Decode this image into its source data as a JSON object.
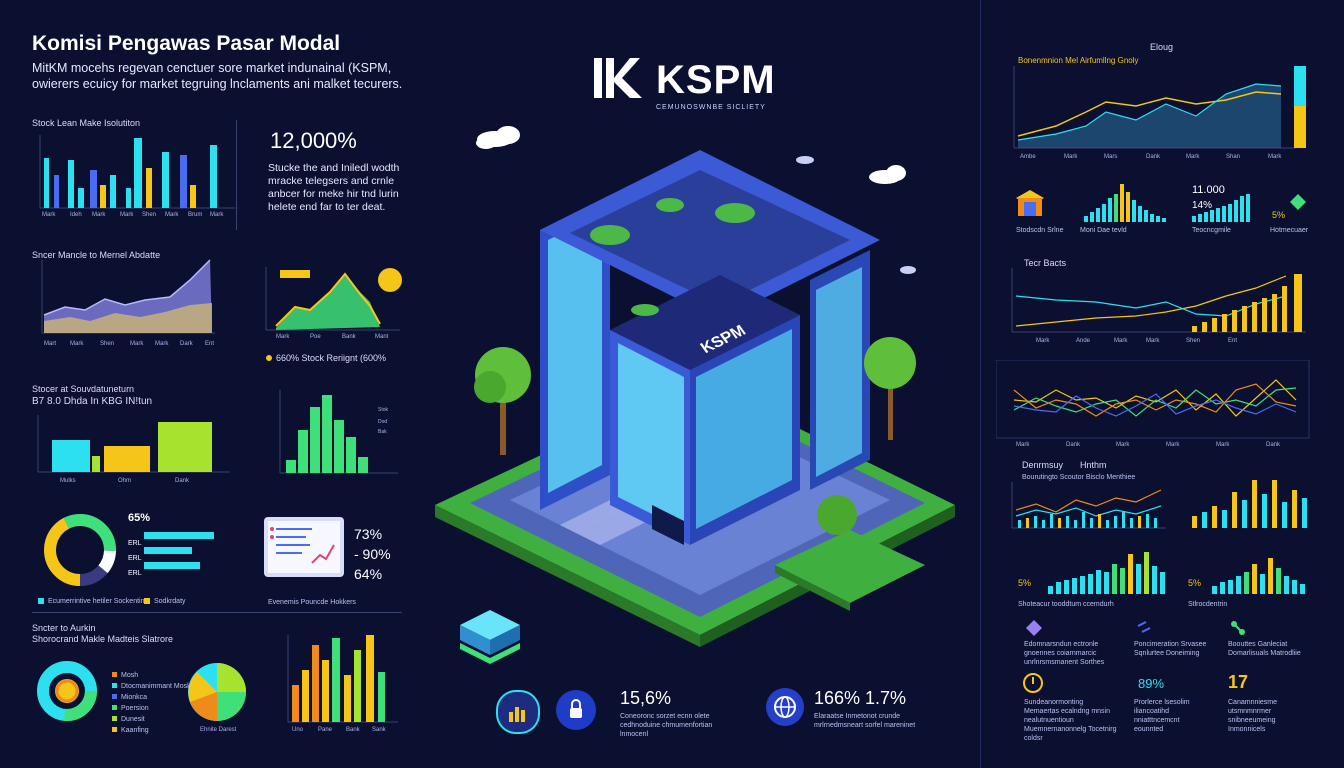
{
  "header": {
    "title": "Komisi Pengawas Pasar Modal",
    "subtitle": "MitKM mocehs regevan cenctuer sore market indunainal (KSPM, owierers ecuicy for market tegruing lnclaments ani malket tecurers."
  },
  "logo": {
    "mark": "K",
    "name": "KSPM",
    "tagline": "CEMUNOSWNBE SICLIETY",
    "building_sign": "KSPM"
  },
  "left_panels": {
    "p1_title": "Stock Lean Make Isolutiton",
    "p2_title": "Sncer Mancle to Mernel Abdatte",
    "p3_title_1": "Stocer at Souvdatuneturn",
    "p3_title_2": "B7 8.0 Dhda In KBG IN!tun",
    "p4_legend_1": "Ecumerrintive hetiler Sockentin",
    "p4_legend_2": "Sodkrdaty",
    "p5_title_1": "Sncter to Aurkin",
    "p5_title_2": "Shorocrand Makle Madteis Slatrore"
  },
  "stats": {
    "headline_value": "12,000%",
    "headline_text": "Stucke the and Iniledl wodth mracke telegsers and crnle anbcer for meke hir tnd lurin helete end far to ter deat.",
    "line_chart_label": "660% Stock Reriignt (600%",
    "donut_pct": "65%",
    "right_pct_1": "73%",
    "right_pct_2": "- 90%",
    "right_pct_3": "64%",
    "bar_row_labels": [
      "ERL",
      "ERL",
      "ERL"
    ],
    "tablet_caption": "Evenemis Pouncde Hokkers"
  },
  "bottom_stats": [
    {
      "icon": "chart-icon",
      "value": "",
      "text": ""
    },
    {
      "icon": "lock-icon",
      "value": "15,6%",
      "text": "Coneoronc sorzet ecnn olete cedhnoduine chmumenfortian lnmocenl"
    },
    {
      "icon": "globe-icon",
      "value": "166% 1.7%",
      "text": "Elaraatse Inmetonot crunde mrlrnedmsneart sorfel mareninet"
    }
  ],
  "right_panels": {
    "top_label": "Eloug",
    "chart1_title": "Bonenmnion Mel Airfumllng Gnoly",
    "stat_1": "11.000",
    "stat_2": "14%",
    "stat_3": "5%",
    "chart3_title": "Tecr Bacts",
    "chart5_title_1": "Denrmsuy",
    "chart5_title_2": "Hnthm",
    "chart5_sub": "Bourutingto Scoutor Bisclo Menthiee",
    "mini_pct_1": "5%",
    "mini_pct_2": "5%",
    "bottom_vals": [
      "89%",
      "17"
    ]
  },
  "colors": {
    "bg": "#0b1030",
    "cyan": "#2de0f0",
    "yellow": "#f5c518",
    "green": "#3fe07a",
    "lime": "#a6e22e",
    "orange": "#f08a1a",
    "blue": "#4a6cf0",
    "purple": "#9b7ef0"
  }
}
